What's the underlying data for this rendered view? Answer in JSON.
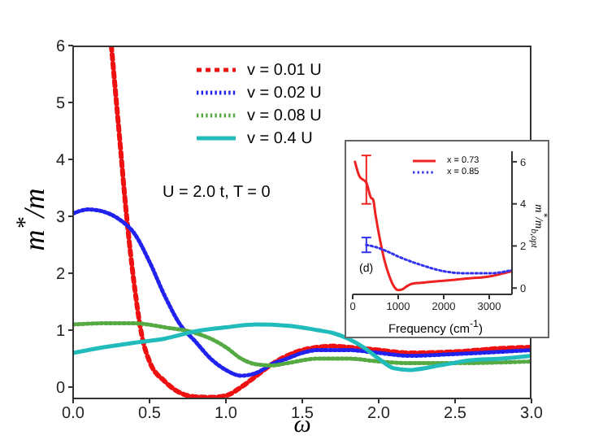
{
  "chart_data": [
    {
      "type": "line",
      "xlabel": "ω",
      "ylabel": "m$^{*}$/m",
      "xlim": [
        0,
        3
      ],
      "ylim": [
        -0.2,
        6
      ],
      "xticks": [
        {
          "value": 0,
          "label": "0.0"
        },
        {
          "value": 0.5,
          "label": "0.5"
        },
        {
          "value": 1,
          "label": "1.0"
        },
        {
          "value": 1.5,
          "label": "1.5"
        },
        {
          "value": 2,
          "label": "2.0"
        },
        {
          "value": 2.5,
          "label": "2.5"
        },
        {
          "value": 3,
          "label": "3.0"
        }
      ],
      "yticks": [
        0,
        1,
        2,
        3,
        4,
        5,
        6
      ],
      "legend": "top",
      "marker": "none",
      "annotations": [
        "U = 2.0 t, T = 0"
      ],
      "series": [
        {
          "name": "v = 0.01 U",
          "color": "#ee1111",
          "line_style": "dashed",
          "x": [
            0.25,
            0.3,
            0.35,
            0.4,
            0.45,
            0.5,
            0.6,
            0.7,
            0.8,
            0.9,
            1.0,
            1.1,
            1.2,
            1.3,
            1.4,
            1.5,
            1.6,
            1.7,
            1.8,
            2.0,
            2.2,
            2.5,
            2.8,
            3.0
          ],
          "values": [
            6,
            4.5,
            3,
            1.8,
            0.9,
            0.45,
            0.1,
            -0.1,
            -0.17,
            -0.18,
            -0.15,
            0,
            0.2,
            0.4,
            0.55,
            0.65,
            0.7,
            0.72,
            0.7,
            0.65,
            0.6,
            0.62,
            0.68,
            0.7
          ]
        },
        {
          "name": "v = 0.02 U",
          "color": "#2222ee",
          "line_style": "dotted",
          "x": [
            0,
            0.1,
            0.2,
            0.3,
            0.4,
            0.5,
            0.6,
            0.7,
            0.8,
            0.9,
            1.0,
            1.1,
            1.2,
            1.3,
            1.4,
            1.5,
            1.6,
            1.8,
            2.0,
            2.2,
            2.5,
            3.0
          ],
          "values": [
            3.05,
            3.12,
            3.08,
            2.95,
            2.7,
            2.2,
            1.6,
            1.1,
            0.8,
            0.5,
            0.3,
            0.2,
            0.25,
            0.4,
            0.5,
            0.6,
            0.65,
            0.65,
            0.6,
            0.55,
            0.58,
            0.65
          ]
        },
        {
          "name": "v = 0.08 U",
          "color": "#55aa44",
          "line_style": "dotted",
          "x": [
            0,
            0.2,
            0.4,
            0.6,
            0.8,
            0.9,
            1.0,
            1.1,
            1.2,
            1.3,
            1.4,
            1.6,
            1.8,
            2.0,
            2.2,
            2.5,
            3.0
          ],
          "values": [
            1.1,
            1.12,
            1.12,
            1.05,
            0.95,
            0.85,
            0.7,
            0.5,
            0.4,
            0.38,
            0.42,
            0.5,
            0.5,
            0.45,
            0.42,
            0.42,
            0.45
          ]
        },
        {
          "name": "v = 0.4 U",
          "color": "#22bbbb",
          "line_style": "solid",
          "x": [
            0,
            0.2,
            0.4,
            0.6,
            0.8,
            1.0,
            1.2,
            1.4,
            1.6,
            1.7,
            1.8,
            1.9,
            2.0,
            2.1,
            2.2,
            2.4,
            2.6,
            2.8,
            3.0
          ],
          "values": [
            0.6,
            0.7,
            0.78,
            0.85,
            0.98,
            1.05,
            1.1,
            1.08,
            1.0,
            0.95,
            0.85,
            0.7,
            0.5,
            0.33,
            0.3,
            0.38,
            0.47,
            0.5,
            0.55
          ]
        }
      ]
    },
    {
      "type": "line",
      "xlabel": "Frequency (cm$^{-1}$)",
      "ylabel": "m$^{*}$/m$_{b,opt}$",
      "xlim": [
        0,
        3500
      ],
      "ylim": [
        -0.3,
        6.5
      ],
      "xticks": [
        0,
        1000,
        2000,
        3000
      ],
      "yticks": [
        0,
        2,
        4,
        6
      ],
      "legend": "top right",
      "marker": "none",
      "annotations": [
        "(d)"
      ],
      "series": [
        {
          "name": "x = 0.73",
          "color": "#ee2222",
          "line_style": "solid",
          "x": [
            50,
            150,
            300,
            400,
            450,
            500,
            600,
            700,
            800,
            900,
            1000,
            1100,
            1200,
            1300,
            1500,
            2000,
            2500,
            3000,
            3500
          ],
          "values": [
            6,
            5.3,
            5,
            4.3,
            4.2,
            3.5,
            2.3,
            1.3,
            0.6,
            0.1,
            -0.1,
            -0.05,
            0.1,
            0.2,
            0.25,
            0.35,
            0.45,
            0.55,
            0.8
          ],
          "errors": [
            null,
            null,
            [
              4,
              6.3
            ],
            null,
            null,
            null,
            null,
            null,
            null,
            null,
            null,
            null,
            null,
            null,
            null,
            null,
            null,
            null,
            null
          ]
        },
        {
          "name": "x = 0.85",
          "color": "#3333ee",
          "line_style": "dotted",
          "x": [
            300,
            500,
            800,
            1000,
            1500,
            2000,
            2500,
            3000,
            3500
          ],
          "values": [
            2.05,
            1.95,
            1.7,
            1.5,
            1.1,
            0.8,
            0.7,
            0.7,
            0.85
          ],
          "errors": [
            [
              1.7,
              2.4
            ],
            null,
            null,
            null,
            null,
            null,
            null,
            null,
            null
          ]
        }
      ]
    }
  ]
}
